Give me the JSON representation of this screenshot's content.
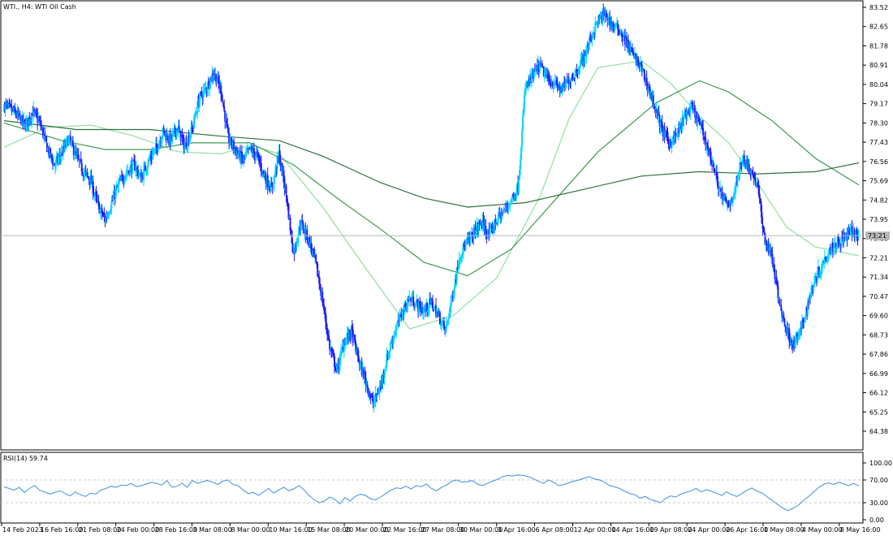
{
  "header": {
    "title": "WTI., H4:  WTI Oil Cash"
  },
  "rsi": {
    "label": "RSI(14) 59.74",
    "levels": [
      100.0,
      70.0,
      30.0,
      0.0
    ],
    "level_labels": [
      "100.00",
      "70.00",
      "30.00",
      "0.00"
    ],
    "values": [
      58,
      55,
      52,
      57,
      48,
      55,
      60,
      52,
      49,
      45,
      48,
      51,
      46,
      42,
      49,
      44,
      41,
      47,
      45,
      52,
      55,
      59,
      57,
      61,
      60,
      64,
      58,
      60,
      63,
      66,
      64,
      61,
      69,
      57,
      59,
      64,
      57,
      69,
      64,
      67,
      69,
      66,
      62,
      68,
      70,
      62,
      60,
      52,
      46,
      48,
      43,
      49,
      55,
      47,
      53,
      57,
      51,
      55,
      60,
      52,
      42,
      35,
      30,
      33,
      40,
      36,
      28,
      39,
      33,
      41,
      45,
      43,
      37,
      35,
      40,
      46,
      52,
      56,
      55,
      59,
      54,
      60,
      58,
      63,
      55,
      51,
      57,
      61,
      68,
      70,
      66,
      67,
      69,
      63,
      60,
      64,
      68,
      71,
      76,
      78,
      77,
      79,
      78,
      76,
      72,
      68,
      64,
      70,
      66,
      60,
      62,
      65,
      68,
      70,
      73,
      76,
      72,
      70,
      66,
      60,
      58,
      55,
      50,
      46,
      44,
      38,
      41,
      36,
      33,
      30,
      37,
      42,
      40,
      45,
      48,
      51,
      55,
      49,
      53,
      50,
      47,
      43,
      49,
      44,
      41,
      46,
      52,
      56,
      50,
      47,
      40,
      34,
      27,
      21,
      16,
      20,
      25,
      33,
      40,
      48,
      56,
      62,
      65,
      62,
      66,
      63,
      60,
      64,
      59.74
    ]
  },
  "chart_data": {
    "type": "candlestick",
    "symbol": "WTI.",
    "timeframe": "H4",
    "title": "WTI Oil Cash",
    "current_price": 73.21,
    "current_price_label": "73.21",
    "ylim": [
      63.7,
      83.8
    ],
    "y_ticks": [
      "83.52",
      "82.65",
      "81.78",
      "80.91",
      "80.04",
      "79.17",
      "78.30",
      "77.43",
      "76.56",
      "75.69",
      "74.82",
      "73.95",
      "73.08",
      "72.21",
      "71.34",
      "70.47",
      "69.60",
      "68.73",
      "67.86",
      "66.99",
      "66.12",
      "65.25",
      "64.38"
    ],
    "x_ticks": [
      "14 Feb 2023",
      "16 Feb 16:00",
      "21 Feb 08:00",
      "24 Feb 00:00",
      "28 Feb 16:00",
      "3 Mar 08:00",
      "8 Mar 00:00",
      "10 Mar 16:00",
      "15 Mar 08:00",
      "20 Mar 00:00",
      "22 Mar 16:00",
      "27 Mar 08:00",
      "30 Mar 00:00",
      "3 Apr 16:00",
      "6 Apr 08:00",
      "12 Apr 00:00",
      "14 Apr 16:00",
      "19 Apr 08:00",
      "24 Apr 00:00",
      "26 Apr 16:00",
      "1 May 08:00",
      "4 May 00:00",
      "8 May 16:00"
    ],
    "close_path": [
      79.1,
      78.9,
      78.6,
      78.2,
      78.8,
      78.3,
      77.2,
      76.4,
      76.9,
      77.6,
      76.8,
      76.1,
      75.7,
      74.6,
      73.9,
      74.8,
      75.6,
      76.1,
      76.4,
      75.8,
      76.6,
      77.1,
      77.9,
      77.5,
      78.1,
      77.2,
      78.0,
      79.4,
      79.9,
      80.6,
      79.8,
      77.6,
      77.1,
      76.6,
      77.1,
      76.8,
      75.9,
      75.3,
      76.9,
      75.1,
      72.4,
      73.8,
      73.1,
      72.1,
      70.3,
      68.2,
      67.1,
      68.4,
      68.9,
      67.6,
      66.6,
      65.6,
      66.4,
      67.8,
      68.9,
      69.7,
      70.4,
      70.1,
      69.8,
      70.2,
      69.6,
      68.9,
      70.6,
      72.4,
      72.9,
      73.4,
      73.8,
      73.2,
      73.9,
      74.3,
      74.8,
      75.4,
      79.9,
      80.4,
      80.9,
      80.3,
      80.1,
      79.8,
      80.2,
      80.6,
      81.2,
      82.1,
      82.9,
      83.2,
      82.7,
      82.5,
      81.9,
      81.3,
      80.8,
      79.9,
      78.9,
      77.9,
      77.4,
      77.8,
      78.6,
      79.0,
      78.3,
      77.4,
      76.3,
      75.1,
      74.5,
      75.3,
      76.8,
      76.2,
      75.6,
      73.1,
      72.3,
      70.3,
      69.0,
      68.3,
      68.9,
      70.1,
      71.3,
      71.9,
      72.6,
      72.9,
      73.1,
      73.4,
      73.21
    ],
    "moving_averages": [
      {
        "color": "#90e0a0",
        "points": [
          [
            0,
            77.2
          ],
          [
            6,
            78.1
          ],
          [
            12,
            78.2
          ],
          [
            18,
            77.7
          ],
          [
            24,
            77.0
          ],
          [
            30,
            76.9
          ],
          [
            34,
            77.3
          ],
          [
            38,
            76.9
          ],
          [
            44,
            74.5
          ],
          [
            50,
            71.7
          ],
          [
            56,
            69.0
          ],
          [
            62,
            69.6
          ],
          [
            68,
            71.3
          ],
          [
            74,
            75.0
          ],
          [
            78,
            78.5
          ],
          [
            82,
            80.8
          ],
          [
            88,
            81.1
          ],
          [
            92,
            80.1
          ],
          [
            96,
            78.6
          ],
          [
            100,
            77.4
          ],
          [
            104,
            75.6
          ],
          [
            108,
            73.6
          ],
          [
            112,
            72.7
          ],
          [
            118,
            72.3
          ]
        ]
      },
      {
        "color": "#3c9a50",
        "points": [
          [
            0,
            78.3
          ],
          [
            8,
            77.5
          ],
          [
            14,
            77.1
          ],
          [
            20,
            77.1
          ],
          [
            26,
            77.4
          ],
          [
            34,
            77.4
          ],
          [
            40,
            76.4
          ],
          [
            46,
            74.9
          ],
          [
            52,
            73.5
          ],
          [
            58,
            72.0
          ],
          [
            64,
            71.4
          ],
          [
            70,
            72.6
          ],
          [
            76,
            74.8
          ],
          [
            82,
            77.0
          ],
          [
            90,
            79.2
          ],
          [
            96,
            80.2
          ],
          [
            100,
            79.7
          ],
          [
            106,
            78.4
          ],
          [
            112,
            76.7
          ],
          [
            118,
            75.5
          ]
        ]
      },
      {
        "color": "#2e7040",
        "points": [
          [
            0,
            78.4
          ],
          [
            10,
            78.0
          ],
          [
            20,
            78.0
          ],
          [
            30,
            77.7
          ],
          [
            38,
            77.5
          ],
          [
            44,
            76.8
          ],
          [
            52,
            75.6
          ],
          [
            58,
            74.9
          ],
          [
            64,
            74.5
          ],
          [
            72,
            74.7
          ],
          [
            80,
            75.3
          ],
          [
            88,
            75.9
          ],
          [
            96,
            76.1
          ],
          [
            104,
            76.0
          ],
          [
            112,
            76.1
          ],
          [
            118,
            76.5
          ]
        ]
      }
    ]
  }
}
